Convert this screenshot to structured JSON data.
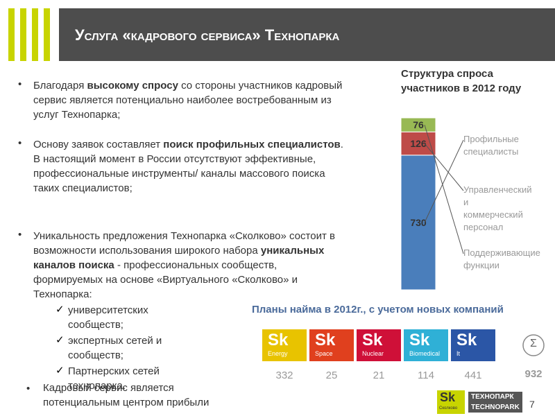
{
  "header": {
    "title": "Услуга «кадрового сервиса» Технопарка"
  },
  "bullets": [
    [
      {
        "text": "Благодаря "
      },
      {
        "text": "высокому спросу",
        "bold": true
      },
      {
        "text": " со стороны участников кадровый сервис является потенциально наиболее востребованным из услуг Технопарка;"
      }
    ],
    [
      {
        "text": "Основу заявок составляет "
      },
      {
        "text": "поиск профильных специалистов",
        "bold": true
      },
      {
        "text": ". В настоящий момент в России отсутствуют эффективные, профессиональные инструменты/ каналы массового поиска таких специалистов;"
      }
    ],
    [
      {
        "text": "Уникальность предложения Технопарка «Сколково» состоит в возможности использования широкого набора "
      },
      {
        "text": "уникальных каналов поиска",
        "bold": true
      },
      {
        "text": " - профессиональных сообществ, формируемых на основе «Виртуального «Сколково» и Технопарка:"
      }
    ]
  ],
  "checks": [
    "университетских сообществ;",
    "экспертных сетей и сообществ;",
    "Партнерских сетей технопарка."
  ],
  "check_symbol": "✓",
  "bottom_bullet": "Кадровый сервис является потенциальным центром прибыли",
  "demand_chart": {
    "title": "Структура спроса участников в 2012 году",
    "segments": [
      {
        "label": "Профильные специалисты",
        "value": 730,
        "color": "#4a7ebb"
      },
      {
        "label": "Управленческий и коммерческий персонал",
        "value": 126,
        "color": "#be4b48"
      },
      {
        "label": "Поддерживающие функции",
        "value": 76,
        "color": "#98b954"
      }
    ]
  },
  "hiring": {
    "title": "Планы найма в 2012г., с учетом новых компаний",
    "clusters": [
      {
        "logo": "Sk",
        "name": "Energy",
        "value": 332,
        "color": "#e8c300"
      },
      {
        "logo": "Sk",
        "name": "Space",
        "value": 25,
        "color": "#e0401e"
      },
      {
        "logo": "Sk",
        "name": "Nuclear",
        "value": 21,
        "color": "#cf1038"
      },
      {
        "logo": "Sk",
        "name": "Biomedical",
        "value": 114,
        "color": "#2fb0d6"
      },
      {
        "logo": "Sk",
        "name": "It",
        "value": 441,
        "color": "#2b56a6"
      }
    ],
    "sum_symbol": "Σ",
    "total": 932
  },
  "footer": {
    "page": "7",
    "logo": "Sk",
    "logo_sub": "Сколково",
    "brand_ru": "ТЕХНОПАРК",
    "brand_en": "TECHNOPARK"
  }
}
